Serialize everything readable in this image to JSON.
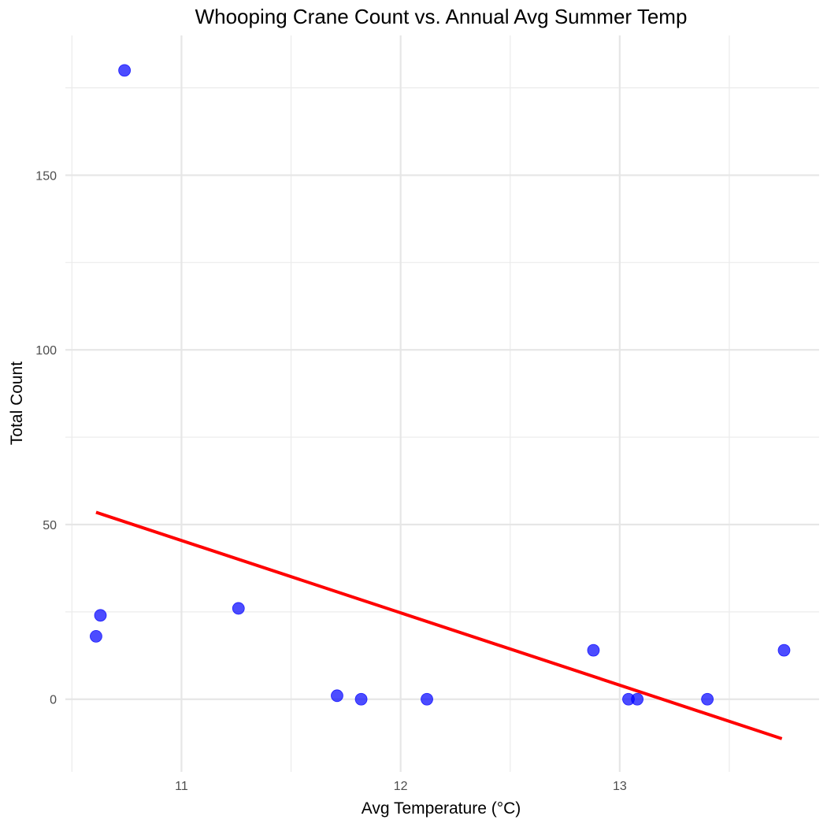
{
  "chart_data": {
    "type": "scatter",
    "title": "Whooping Crane Count vs. Annual Avg Summer Temp",
    "xlabel": "Avg Temperature (°C)",
    "ylabel": "Total Count",
    "xlim": [
      10.47,
      13.91
    ],
    "ylim": [
      -20.8,
      190
    ],
    "x_ticks": [
      11,
      12,
      13
    ],
    "x_tick_labels": [
      "11",
      "12",
      "13"
    ],
    "x_minor_ticks": [
      10.5,
      11.5,
      12.5,
      13.5
    ],
    "y_ticks": [
      0,
      50,
      100,
      150
    ],
    "y_tick_labels": [
      "0",
      "50",
      "100",
      "150"
    ],
    "y_minor_ticks": [
      25,
      75,
      125,
      175
    ],
    "grid": true,
    "legend": null,
    "series": [
      {
        "name": "Observations",
        "type": "scatter",
        "color": "#0000ff",
        "opacity": 0.7,
        "points": [
          {
            "x": 10.61,
            "y": 18
          },
          {
            "x": 10.63,
            "y": 24
          },
          {
            "x": 10.74,
            "y": 180
          },
          {
            "x": 11.26,
            "y": 26
          },
          {
            "x": 11.71,
            "y": 1
          },
          {
            "x": 11.82,
            "y": 0
          },
          {
            "x": 12.12,
            "y": 0
          },
          {
            "x": 12.88,
            "y": 14
          },
          {
            "x": 13.04,
            "y": 0
          },
          {
            "x": 13.08,
            "y": 0
          },
          {
            "x": 13.4,
            "y": 0
          },
          {
            "x": 13.75,
            "y": 14
          }
        ]
      },
      {
        "name": "Linear fit",
        "type": "line",
        "color": "#ff0000",
        "points": [
          {
            "x": 10.61,
            "y": 53.5
          },
          {
            "x": 13.74,
            "y": -11.3
          }
        ]
      }
    ]
  }
}
